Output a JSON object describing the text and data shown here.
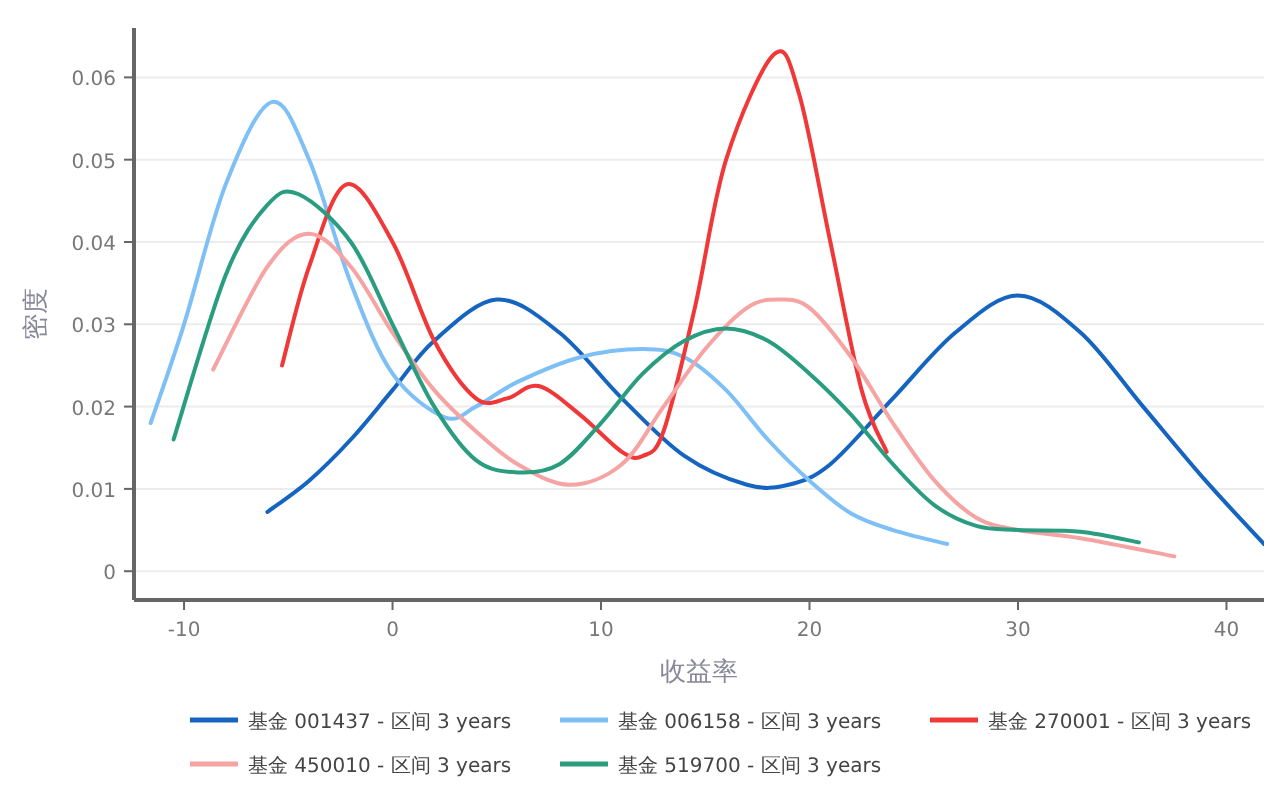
{
  "chart_data": {
    "type": "line",
    "xlabel": "收益率",
    "ylabel": "密度",
    "xlim": [
      -12.4,
      41.8
    ],
    "ylim": [
      -0.0035,
      0.066
    ],
    "xticks": [
      -10,
      0,
      10,
      20,
      30,
      40
    ],
    "yticks": [
      0,
      0.01,
      0.02,
      0.03,
      0.04,
      0.05,
      0.06
    ],
    "grid": "y",
    "legend": "bottom",
    "marker": "none",
    "line_style": "solid",
    "series": [
      {
        "name": "基金 001437 - 区间 3 years",
        "color": "#1565c0",
        "x": [
          -6,
          -4,
          -2,
          0,
          2,
          5,
          8,
          11,
          14,
          17,
          19,
          21,
          24,
          27,
          30,
          33,
          36,
          39,
          41.8
        ],
        "values": [
          0.0072,
          0.011,
          0.016,
          0.022,
          0.028,
          0.033,
          0.029,
          0.021,
          0.014,
          0.0105,
          0.0105,
          0.013,
          0.021,
          0.029,
          0.0335,
          0.029,
          0.02,
          0.011,
          0.0033
        ]
      },
      {
        "name": "基金 006158 - 区间 3 years",
        "color": "#7ec0f5",
        "x": [
          -11.6,
          -10,
          -8,
          -5.8,
          -4,
          -2,
          0,
          2.5,
          4,
          6,
          9,
          12,
          14,
          16,
          18,
          20,
          22,
          24,
          26.6
        ],
        "values": [
          0.018,
          0.03,
          0.047,
          0.057,
          0.05,
          0.035,
          0.024,
          0.0187,
          0.02,
          0.023,
          0.026,
          0.027,
          0.026,
          0.022,
          0.016,
          0.011,
          0.007,
          0.005,
          0.0033
        ]
      },
      {
        "name": "基金 270001 - 区间 3 years",
        "color": "#f03838",
        "x": [
          -5.3,
          -4,
          -2.2,
          0,
          2,
          4,
          5.5,
          7,
          9,
          11,
          12,
          13,
          14.5,
          16,
          18.3,
          19.5,
          21,
          22.5,
          23.7
        ],
        "values": [
          0.025,
          0.037,
          0.047,
          0.04,
          0.028,
          0.021,
          0.021,
          0.0225,
          0.019,
          0.0145,
          0.014,
          0.017,
          0.032,
          0.05,
          0.0628,
          0.058,
          0.04,
          0.022,
          0.0145
        ]
      },
      {
        "name": "基金 450010 - 区间 3 years",
        "color": "#f5a3a3",
        "x": [
          -8.6,
          -6,
          -4,
          -2,
          0,
          2,
          4,
          6,
          8.5,
          11,
          13,
          15,
          17,
          18.5,
          20,
          22,
          24,
          26,
          28,
          30,
          33,
          37.5
        ],
        "values": [
          0.0245,
          0.037,
          0.041,
          0.037,
          0.029,
          0.022,
          0.017,
          0.013,
          0.0105,
          0.013,
          0.02,
          0.027,
          0.032,
          0.033,
          0.032,
          0.026,
          0.018,
          0.011,
          0.0065,
          0.005,
          0.004,
          0.0018
        ]
      },
      {
        "name": "基金 519700 - 区间 3 years",
        "color": "#2a9d80",
        "x": [
          -10.5,
          -8,
          -6,
          -4.5,
          -2,
          0,
          2,
          4,
          6,
          8,
          10,
          12,
          14,
          16,
          18,
          20,
          22,
          24,
          26,
          28,
          30,
          33,
          35.8
        ],
        "values": [
          0.016,
          0.036,
          0.0445,
          0.0458,
          0.04,
          0.03,
          0.02,
          0.0135,
          0.012,
          0.013,
          0.018,
          0.024,
          0.028,
          0.0295,
          0.028,
          0.024,
          0.019,
          0.013,
          0.008,
          0.0055,
          0.005,
          0.0048,
          0.0035
        ]
      }
    ]
  }
}
